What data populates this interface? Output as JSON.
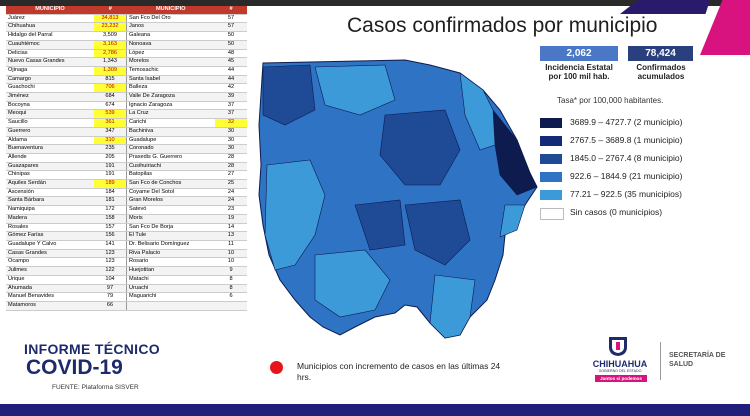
{
  "table": {
    "headers": [
      "MUNICIPIO",
      "#",
      "MUNICIPIO",
      "#"
    ],
    "rows": [
      [
        "Juárez",
        "34,813",
        "San Fco Del Oro",
        "57"
      ],
      [
        "Chihuahua",
        "23,232",
        "Janos",
        "57"
      ],
      [
        "Hidalgo del Parral",
        "3,509",
        "Galeana",
        "50"
      ],
      [
        "Cuauhtémoc",
        "3,163",
        "Nonoava",
        "50"
      ],
      [
        "Delicias",
        "2,786",
        "López",
        "48"
      ],
      [
        "Nuevo Casas Grandes",
        "1,343",
        "Morelos",
        "45"
      ],
      [
        "Ojinaga",
        "1,309",
        "Temosachic",
        "44"
      ],
      [
        "Camargo",
        "815",
        "Santa Isabel",
        "44"
      ],
      [
        "Guachochi",
        "706",
        "Balleza",
        "42"
      ],
      [
        "Jiménez",
        "684",
        "Valle De Zaragoza",
        "39"
      ],
      [
        "Bocoyna",
        "674",
        "Ignacio Zaragoza",
        "37"
      ],
      [
        "Meoqui",
        "539",
        "La Cruz",
        "37"
      ],
      [
        "Saucillo",
        "361",
        "Carichi",
        "32"
      ],
      [
        "Guerrero",
        "347",
        "Bachiniva",
        "30"
      ],
      [
        "Aldama",
        "310",
        "Guadalupe",
        "30"
      ],
      [
        "Buenaventura",
        "235",
        "Coronado",
        "30"
      ],
      [
        "Allende",
        "205",
        "Praxedis G. Guerrero",
        "28"
      ],
      [
        "Guazapares",
        "191",
        "Cusihuiriachi",
        "28"
      ],
      [
        "Chinipas",
        "191",
        "Batopilas",
        "27"
      ],
      [
        "Aquiles Serdán",
        "189",
        "San Fco de Conchos",
        "25"
      ],
      [
        "Ascensión",
        "184",
        "Coyame Del Sotol",
        "24"
      ],
      [
        "Santa Bárbara",
        "181",
        "Gran Morelos",
        "24"
      ],
      [
        "Namiquipa",
        "172",
        "Satevó",
        "23"
      ],
      [
        "Madera",
        "158",
        "Moris",
        "19"
      ],
      [
        "Rosales",
        "157",
        "San Fco De Borja",
        "14"
      ],
      [
        "Gómez Farías",
        "156",
        "El Tule",
        "13"
      ],
      [
        "Guadalupe Y Calvo",
        "141",
        "Dr. Belisario Domínguez",
        "11"
      ],
      [
        "Casas Grandes",
        "123",
        "Riva Palacio",
        "10"
      ],
      [
        "Ocampo",
        "123",
        "Rosario",
        "10"
      ],
      [
        "Julimes",
        "122",
        "Huejotitan",
        "9"
      ],
      [
        "Urique",
        "104",
        "Matachi",
        "8"
      ],
      [
        "Ahumada",
        "97",
        "Uruachi",
        "8"
      ],
      [
        "Manuel Benavides",
        "79",
        "Maguarichi",
        "6"
      ],
      [
        "Matamoros",
        "66",
        "",
        ""
      ]
    ],
    "highlighted_rows_left": [
      0,
      1,
      3,
      4,
      6,
      8,
      11,
      12,
      14,
      19
    ],
    "highlighted_rows_right": [
      12
    ]
  },
  "header": {
    "title": "Casos confirmados por municipio"
  },
  "stats": {
    "incidence_value": "2,062",
    "incidence_label_1": "Incidencia Estatal",
    "incidence_label_2": "por 100 mil hab.",
    "confirmed_value": "78,424",
    "confirmed_label_1": "Confirmados",
    "confirmed_label_2": "acumulados"
  },
  "rate_note": "Tasa* por 100,000 habitantes.",
  "legend": [
    {
      "label": "3689.9 – 4727.7 (2 municipio)",
      "color": "#0d1b4f"
    },
    {
      "label": "2767.5 – 3689.8 (1 municipio)",
      "color": "#132a78"
    },
    {
      "label": "1845.0 – 2767.4 (8 municipio)",
      "color": "#1f4a96"
    },
    {
      "label": "922.6 – 1844.9 (21 municipio)",
      "color": "#2f73c4"
    },
    {
      "label": "77.21 – 922.5 (35 municipios)",
      "color": "#3c9ad9"
    },
    {
      "label": "Sin casos (0 municipios)",
      "color": "#ffffff"
    }
  ],
  "note": "Municipios con incremento de casos en las últimas 24 hrs.",
  "footer": {
    "informe": "INFORME TÉCNICO",
    "covid": "COVID-19",
    "source": "FUENTE: Plataforma SISVER"
  },
  "logos": {
    "state_name": "CHIHUAHUA",
    "state_sub": "GOBIERNO DEL ESTADO",
    "slogan": "Juntos sí podemos",
    "secretaria_1": "SECRETARÍA DE",
    "secretaria_2": "SALUD"
  },
  "colors": {
    "header_red": "#c0392b",
    "highlight_yellow": "#ffff33",
    "title_navy": "#1d2a6b",
    "accent_pink": "#d8137f",
    "increase_dot": "#e8141b"
  }
}
